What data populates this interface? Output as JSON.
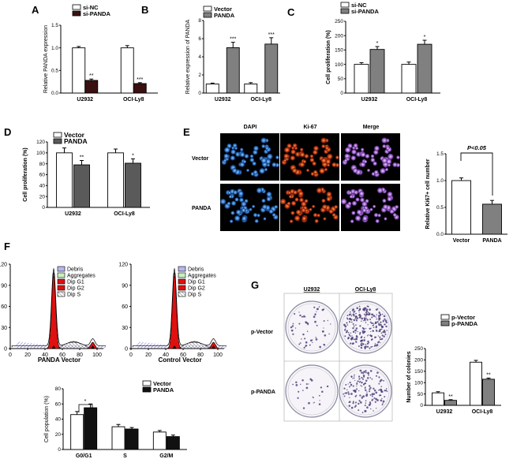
{
  "panels": {
    "A": {
      "label": "A",
      "ylabel": "Relative PANDA expression",
      "legend": [
        "si-NC",
        "si-PANDA"
      ],
      "colors": [
        "#ffffff",
        "#3a1010"
      ]
    },
    "B": {
      "label": "B",
      "ylabel": "Relative expression of PANDA",
      "legend": [
        "Vector",
        "PANDA"
      ],
      "colors": [
        "#ffffff",
        "#808080"
      ]
    },
    "C": {
      "label": "C",
      "ylabel": "Cell proliferation (%)",
      "legend": [
        "si-NC",
        "si-PANDA"
      ],
      "colors": [
        "#ffffff",
        "#808080"
      ]
    },
    "D": {
      "label": "D",
      "ylabel": "Cell proliferation (%)",
      "legend": [
        "Vector",
        "PANDA"
      ],
      "colors": [
        "#ffffff",
        "#5a5a5a"
      ]
    },
    "E": {
      "label": "E",
      "col_headers": [
        "DAPI",
        "Ki-67",
        "Merge"
      ],
      "row_labels": [
        "Vector",
        "PANDA"
      ],
      "ylabel": "Relative Ki67+ cell number",
      "pvalue": "P<0.05"
    },
    "F": {
      "label": "F",
      "flow_titles": [
        "PANDA Vector",
        "Control Vector"
      ],
      "flow_legend": [
        "Debris",
        "Aggregates",
        "Dip G1",
        "Dip G2",
        "Dip S"
      ],
      "flow_yticks": [
        "0",
        "30",
        "60",
        "90",
        "120"
      ],
      "flow_xticks": [
        "0",
        "20",
        "40",
        "60",
        "80",
        "100"
      ],
      "ylabel": "Cell population (%)",
      "legend": [
        "Vector",
        "PANDA"
      ],
      "colors": [
        "#ffffff",
        "#111111"
      ]
    },
    "G": {
      "label": "G",
      "col_headers": [
        "U2932",
        "OCI-Ly8"
      ],
      "row_labels": [
        "p-Vector",
        "p-PANDA"
      ],
      "ylabel": "Number of colonies",
      "legend": [
        "p-Vector",
        "p-PANDA"
      ],
      "colors": [
        "#ffffff",
        "#808080"
      ]
    }
  },
  "chart_data": [
    {
      "id": "A",
      "type": "bar",
      "categories": [
        "U2932",
        "OCI-Ly8"
      ],
      "series": [
        {
          "name": "si-NC",
          "values": [
            1.0,
            1.0
          ],
          "err": [
            0.03,
            0.05
          ]
        },
        {
          "name": "si-PANDA",
          "values": [
            0.28,
            0.21
          ],
          "err": [
            0.03,
            0.02
          ]
        }
      ],
      "ylim": [
        0,
        1.5
      ],
      "yticks": [
        "0.0",
        "0.5",
        "1.0",
        "1.5"
      ],
      "sig": [
        "**",
        "***"
      ]
    },
    {
      "id": "B",
      "type": "bar",
      "categories": [
        "U2932",
        "OCI-Ly8"
      ],
      "series": [
        {
          "name": "Vector",
          "values": [
            1.0,
            1.0
          ],
          "err": [
            0.1,
            0.15
          ]
        },
        {
          "name": "PANDA",
          "values": [
            5.0,
            5.4
          ],
          "err": [
            0.6,
            0.7
          ]
        }
      ],
      "ylim": [
        0,
        8
      ],
      "yticks": [
        "0",
        "2",
        "4",
        "6",
        "8"
      ],
      "sig": [
        "***",
        "***"
      ]
    },
    {
      "id": "C",
      "type": "bar",
      "categories": [
        "U2932",
        "OCI-Ly8"
      ],
      "series": [
        {
          "name": "si-NC",
          "values": [
            100,
            100
          ],
          "err": [
            6,
            8
          ]
        },
        {
          "name": "si-PANDA",
          "values": [
            152,
            170
          ],
          "err": [
            10,
            14
          ]
        }
      ],
      "ylim": [
        0,
        250
      ],
      "yticks": [
        "0",
        "50",
        "100",
        "150",
        "200",
        "250"
      ],
      "sig": [
        "*",
        "*"
      ]
    },
    {
      "id": "D",
      "type": "bar",
      "categories": [
        "U2932",
        "OCI-Ly8"
      ],
      "series": [
        {
          "name": "Vector",
          "values": [
            100,
            100
          ],
          "err": [
            9,
            7
          ]
        },
        {
          "name": "PANDA",
          "values": [
            78,
            81
          ],
          "err": [
            8,
            8
          ]
        }
      ],
      "ylim": [
        0,
        120
      ],
      "yticks": [
        "0",
        "20",
        "40",
        "60",
        "80",
        "100",
        "120"
      ],
      "sig": [
        "**",
        "*"
      ]
    },
    {
      "id": "E",
      "type": "bar",
      "categories": [
        "Vector",
        "PANDA"
      ],
      "values": [
        1.0,
        0.56
      ],
      "err": [
        0.05,
        0.07
      ],
      "ylim": [
        0,
        1.5
      ],
      "yticks": [
        "0.0",
        "0.5",
        "1.0",
        "1.5"
      ]
    },
    {
      "id": "F",
      "type": "bar",
      "categories": [
        "G0/G1",
        "S",
        "G2/M"
      ],
      "series": [
        {
          "name": "Vector",
          "values": [
            46,
            30,
            23
          ],
          "err": [
            4,
            3,
            2
          ]
        },
        {
          "name": "PANDA",
          "values": [
            55,
            27,
            17
          ],
          "err": [
            5,
            2,
            2
          ]
        }
      ],
      "ylim": [
        0,
        80
      ],
      "yticks": [
        "0",
        "20",
        "40",
        "60",
        "80"
      ],
      "sig": [
        "*",
        "",
        ""
      ]
    },
    {
      "id": "G",
      "type": "bar",
      "categories": [
        "U2932",
        "OCI-Ly8"
      ],
      "series": [
        {
          "name": "p-Vector",
          "values": [
            55,
            190
          ],
          "err": [
            5,
            8
          ]
        },
        {
          "name": "p-PANDA",
          "values": [
            22,
            115
          ],
          "err": [
            3,
            5
          ]
        }
      ],
      "ylim": [
        0,
        250
      ],
      "yticks": [
        "0",
        "50",
        "100",
        "150",
        "200",
        "250"
      ],
      "sig": [
        "**",
        "**"
      ]
    }
  ]
}
